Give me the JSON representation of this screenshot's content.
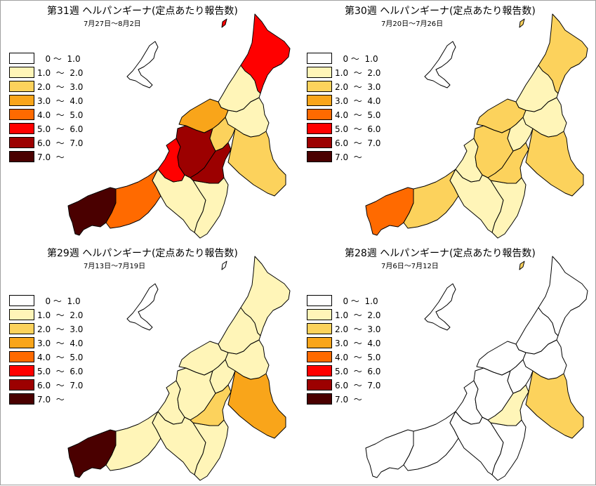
{
  "legend": [
    {
      "label": "   0 〜  1.0",
      "color": "#ffffff"
    },
    {
      "label": "1.0  〜  2.0",
      "color": "#fff5b8"
    },
    {
      "label": "2.0  〜  3.0",
      "color": "#fcd25c"
    },
    {
      "label": "3.0  〜  4.0",
      "color": "#f9a51a"
    },
    {
      "label": "4.0  〜  5.0",
      "color": "#ff6a00"
    },
    {
      "label": "5.0  〜  6.0",
      "color": "#ff0000"
    },
    {
      "label": "6.0  〜  7.0",
      "color": "#9c0000"
    },
    {
      "label": "7.0  〜",
      "color": "#4a0000"
    }
  ],
  "panels": [
    {
      "title": "第31週 ヘルパンギーナ(定点あたり報告数)",
      "period": "7月27日〜8月2日",
      "regions": {
        "joetsu": 7,
        "itoigawa": 4,
        "myoko": 1,
        "kashiwazaki": 5,
        "uonuma": 2,
        "minami_uonuma": 1,
        "chuetsu": 6,
        "nagaoka": 6,
        "sanjo": 2,
        "niitsu": 1,
        "niigata": 3,
        "shibata": 1,
        "murakami": 5,
        "sado": 5
      }
    },
    {
      "title": "第30週 ヘルパンギーナ(定点あたり報告数)",
      "period": "7月20日〜7月26日",
      "regions": {
        "joetsu": 4,
        "itoigawa": 2,
        "myoko": 1,
        "kashiwazaki": 1,
        "uonuma": 2,
        "minami_uonuma": 1,
        "chuetsu": 2,
        "nagaoka": 2,
        "sanjo": 1,
        "niitsu": 1,
        "niigata": 2,
        "shibata": 1,
        "murakami": 2,
        "sado": 2
      }
    },
    {
      "title": "第29週 ヘルパンギーナ(定点あたり報告数)",
      "period": "7月13日〜7月19日",
      "regions": {
        "joetsu": 7,
        "itoigawa": 1,
        "myoko": 1,
        "kashiwazaki": 1,
        "uonuma": 3,
        "minami_uonuma": 1,
        "chuetsu": 2,
        "nagaoka": 1,
        "sanjo": 1,
        "niitsu": 1,
        "niigata": 1,
        "shibata": 1,
        "murakami": 1,
        "sado": 0
      }
    },
    {
      "title": "第28週 ヘルパンギーナ(定点あたり報告数)",
      "period": "7月6日〜7月12日",
      "regions": {
        "joetsu": 0,
        "itoigawa": 0,
        "myoko": 0,
        "kashiwazaki": 0,
        "uonuma": 2,
        "minami_uonuma": 0,
        "chuetsu": 1,
        "nagaoka": 0,
        "sanjo": 0,
        "niitsu": 0,
        "niigata": 0,
        "shibata": 0,
        "murakami": 0,
        "sado": 2
      }
    }
  ]
}
